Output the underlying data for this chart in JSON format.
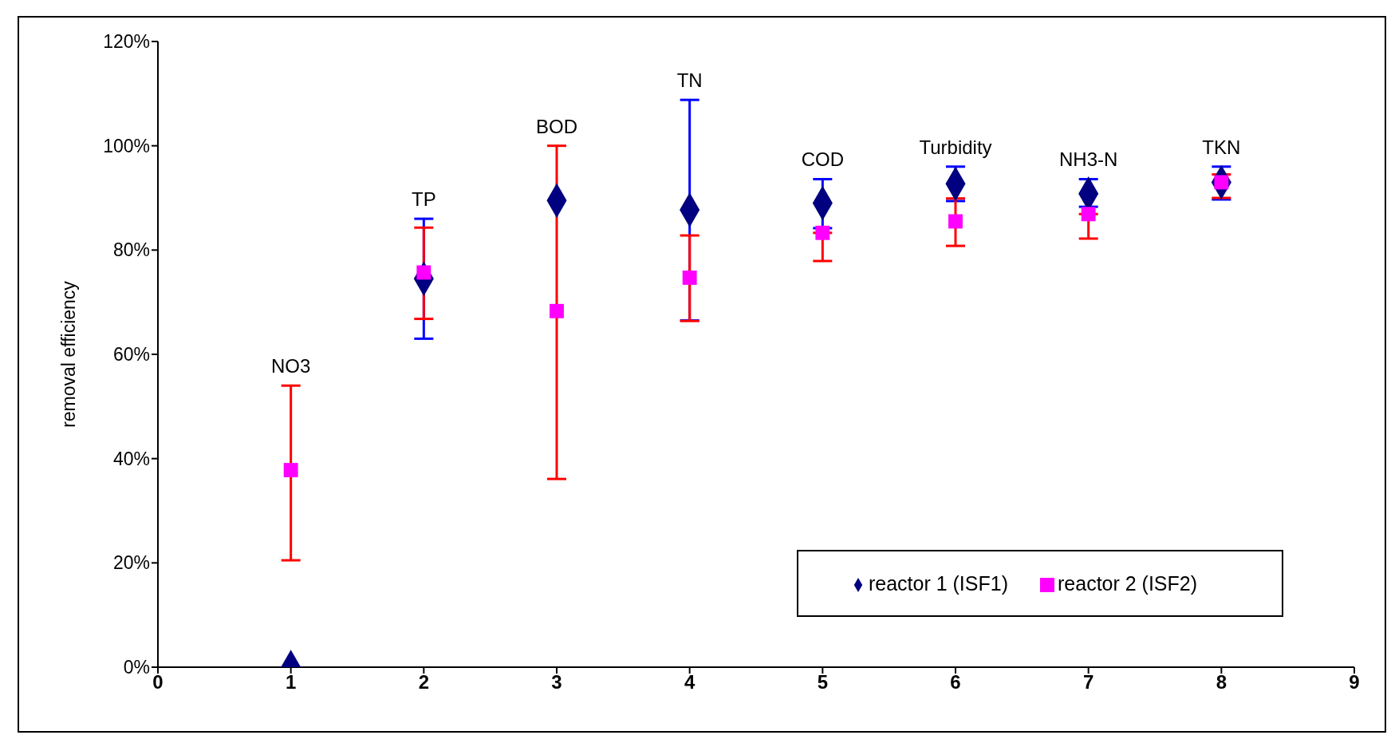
{
  "chart_data": {
    "type": "scatter",
    "ylabel": "removal efficiency",
    "x": [
      1,
      2,
      3,
      4,
      5,
      6,
      7,
      8
    ],
    "xlim": [
      0,
      9
    ],
    "xticks": [
      0,
      1,
      2,
      3,
      4,
      5,
      6,
      7,
      8,
      9
    ],
    "ylim": [
      0,
      120
    ],
    "yticks": [
      {
        "value": 0,
        "label": "0%"
      },
      {
        "value": 20,
        "label": "20%"
      },
      {
        "value": 40,
        "label": "40%"
      },
      {
        "value": 60,
        "label": "60%"
      },
      {
        "value": 80,
        "label": "80%"
      },
      {
        "value": 100,
        "label": "100%"
      },
      {
        "value": 120,
        "label": "120%"
      }
    ],
    "series": [
      {
        "name": "reactor 1 (ISF1)",
        "color": "#000080",
        "marker": "diamond",
        "values": [
          0,
          74.5,
          89.5,
          87.7,
          89,
          92.7,
          90.8,
          93
        ],
        "errors": [
          null,
          [
            63,
            86
          ],
          null,
          [
            66.5,
            108.8
          ],
          [
            84.2,
            93.6
          ],
          [
            89.4,
            96
          ],
          [
            88.3,
            93.6
          ],
          [
            89.7,
            96
          ]
        ]
      },
      {
        "name": "reactor 2 (ISF2)",
        "color": "#ff00ff",
        "marker": "square",
        "values": [
          37.8,
          75.7,
          68.3,
          74.7,
          83.3,
          85.5,
          86.9,
          93
        ],
        "errors": [
          [
            20.5,
            54
          ],
          [
            66.8,
            84.3
          ],
          [
            36.1,
            100
          ],
          [
            66.4,
            82.8
          ],
          [
            77.9,
            83.3
          ],
          [
            80.8,
            89.9
          ],
          [
            82.2,
            86.9
          ],
          [
            90,
            94.5
          ]
        ]
      }
    ],
    "annotations": [
      "NO3",
      "TP",
      "BOD",
      "TN",
      "COD",
      "Turbidity",
      "NH3-N",
      "TKN"
    ],
    "grid": false,
    "legend": "bottom right"
  }
}
